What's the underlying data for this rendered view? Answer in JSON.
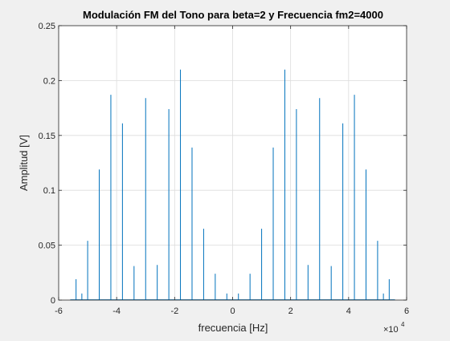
{
  "chart_data": {
    "type": "line",
    "title": "Modulación FM del Tono para beta=2 y Frecuencia fm2=4000",
    "xlabel": "frecuencia [Hz]",
    "ylabel": "Amplitud [V]",
    "x_exponent_label": "×10",
    "x_exponent": "4",
    "xlim": [
      -60000,
      60000
    ],
    "ylim": [
      0,
      0.25
    ],
    "xticks": [
      -60000,
      -40000,
      -20000,
      0,
      20000,
      40000,
      60000
    ],
    "xtick_labels": [
      "-6",
      "-4",
      "-2",
      "0",
      "2",
      "4",
      "6"
    ],
    "yticks": [
      0,
      0.05,
      0.1,
      0.15,
      0.2,
      0.25
    ],
    "ytick_labels": [
      "0",
      "0.05",
      "0.1",
      "0.15",
      "0.2",
      "0.25"
    ],
    "grid": true,
    "line_color": "#0072BD",
    "series": [
      {
        "x": [
          -54000,
          -52000,
          -50000,
          -46000,
          -42000,
          -38000,
          -34000,
          -30000,
          -26000,
          -22000,
          -18000,
          -14000,
          -10000,
          -6000,
          -2000,
          2000,
          6000,
          10000,
          14000,
          18000,
          22000,
          26000,
          30000,
          34000,
          38000,
          42000,
          46000,
          50000,
          52000,
          54000
        ],
        "values": [
          0.019,
          0.006,
          0.054,
          0.119,
          0.187,
          0.161,
          0.031,
          0.184,
          0.032,
          0.174,
          0.21,
          0.139,
          0.065,
          0.024,
          0.006,
          0.006,
          0.024,
          0.065,
          0.139,
          0.21,
          0.174,
          0.032,
          0.184,
          0.031,
          0.161,
          0.187,
          0.119,
          0.054,
          0.006,
          0.019
        ]
      }
    ]
  }
}
